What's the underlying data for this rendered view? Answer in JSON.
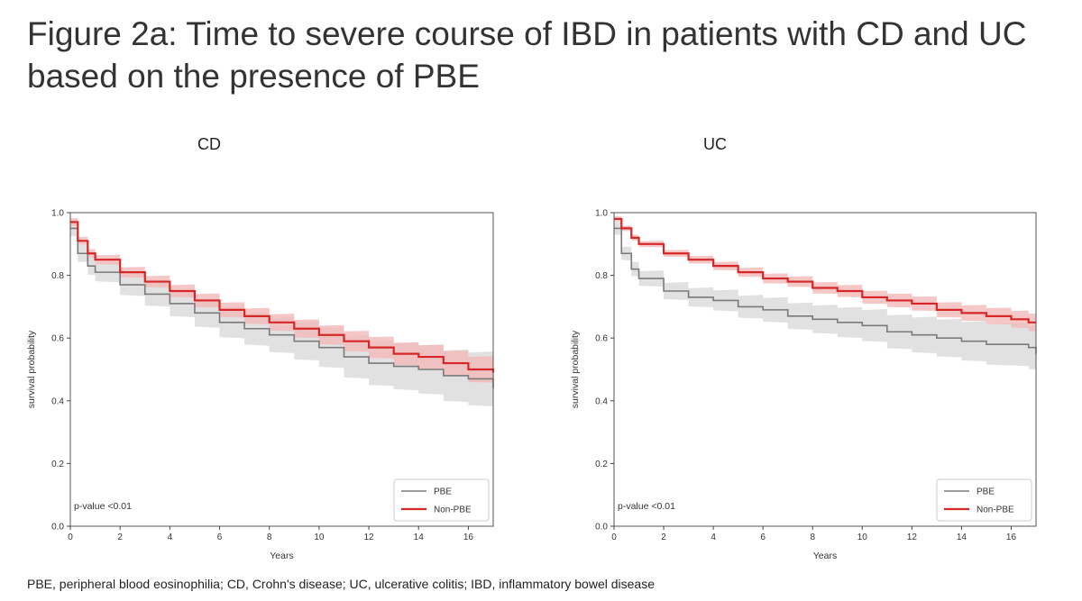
{
  "title": "Figure 2a: Time to severe course of IBD in patients with CD and UC based on the presence of PBE",
  "caption": "PBE, peripheral blood eosinophilia; CD, Crohn's disease; UC, ulcerative colitis; IBD, inflammatory bowel disease",
  "colors": {
    "pbe": "#7a7a7a",
    "nonpbe": "#d62728",
    "pbe_band": "#d9d9d9",
    "nonpbe_band": "#f2b9b9"
  },
  "chart_data": [
    {
      "type": "line",
      "title": "CD",
      "xlabel": "Years",
      "ylabel": "survival probability",
      "xlim": [
        0,
        17
      ],
      "ylim": [
        0,
        1.0
      ],
      "xticks": [
        0,
        2,
        4,
        6,
        8,
        10,
        12,
        14,
        16
      ],
      "yticks": [
        0.0,
        0.2,
        0.4,
        0.6,
        0.8,
        1.0
      ],
      "annotation": "p-value <0.01",
      "legend": "bottom-right",
      "series": [
        {
          "name": "PBE",
          "x": [
            0,
            0.3,
            0.7,
            1,
            2,
            3,
            4,
            5,
            6,
            7,
            8,
            9,
            10,
            11,
            12,
            13,
            14,
            15,
            16,
            16.7,
            17
          ],
          "y": [
            0.95,
            0.87,
            0.83,
            0.81,
            0.77,
            0.74,
            0.71,
            0.68,
            0.65,
            0.63,
            0.61,
            0.59,
            0.57,
            0.54,
            0.52,
            0.51,
            0.5,
            0.48,
            0.47,
            0.47,
            0.44
          ],
          "ci": 0.025
        },
        {
          "name": "Non-PBE",
          "x": [
            0,
            0.3,
            0.7,
            1,
            2,
            3,
            4,
            5,
            6,
            7,
            8,
            9,
            10,
            11,
            12,
            13,
            14,
            15,
            16,
            16.7,
            17
          ],
          "y": [
            0.97,
            0.91,
            0.87,
            0.85,
            0.81,
            0.78,
            0.75,
            0.72,
            0.69,
            0.67,
            0.65,
            0.63,
            0.61,
            0.59,
            0.57,
            0.55,
            0.54,
            0.52,
            0.5,
            0.5,
            0.49
          ],
          "ci": 0.012
        }
      ]
    },
    {
      "type": "line",
      "title": "UC",
      "xlabel": "Years",
      "ylabel": "survival probability",
      "xlim": [
        0,
        17
      ],
      "ylim": [
        0,
        1.0
      ],
      "xticks": [
        0,
        2,
        4,
        6,
        8,
        10,
        12,
        14,
        16
      ],
      "yticks": [
        0.0,
        0.2,
        0.4,
        0.6,
        0.8,
        1.0
      ],
      "annotation": "p-value <0.01",
      "legend": "bottom-right",
      "series": [
        {
          "name": "PBE",
          "x": [
            0,
            0.3,
            0.7,
            1,
            2,
            3,
            4,
            5,
            6,
            7,
            8,
            9,
            10,
            11,
            12,
            13,
            14,
            15,
            16,
            16.7,
            17
          ],
          "y": [
            0.95,
            0.87,
            0.82,
            0.79,
            0.75,
            0.73,
            0.72,
            0.7,
            0.69,
            0.67,
            0.66,
            0.65,
            0.64,
            0.62,
            0.61,
            0.6,
            0.59,
            0.58,
            0.58,
            0.57,
            0.55
          ],
          "ci": 0.02
        },
        {
          "name": "Non-PBE",
          "x": [
            0,
            0.3,
            0.7,
            1,
            2,
            3,
            4,
            5,
            6,
            7,
            8,
            9,
            10,
            11,
            12,
            13,
            14,
            15,
            16,
            16.7,
            17
          ],
          "y": [
            0.98,
            0.95,
            0.92,
            0.9,
            0.87,
            0.85,
            0.83,
            0.81,
            0.79,
            0.78,
            0.76,
            0.75,
            0.73,
            0.72,
            0.71,
            0.69,
            0.68,
            0.67,
            0.66,
            0.65,
            0.65
          ],
          "ci": 0.008
        }
      ]
    }
  ]
}
